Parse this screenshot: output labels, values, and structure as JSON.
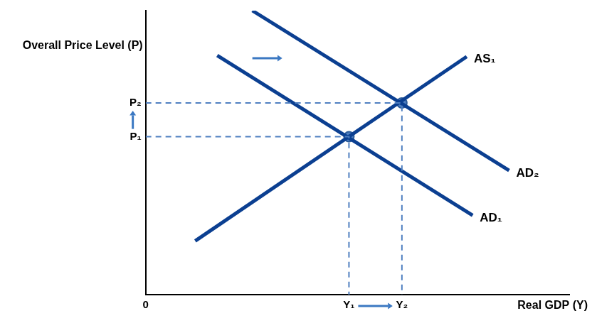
{
  "chart_data": {
    "type": "line",
    "x_label": "Real GDP (Y)",
    "y_label": "Overall Price Level (P)",
    "series": [
      {
        "name": "AS₁",
        "color": "#0b3f91",
        "x": [
          11.7,
          75.8
        ],
        "y": [
          18.9,
          83.8
        ]
      },
      {
        "name": "AD₁",
        "color": "#0b3f91",
        "x": [
          16.9,
          77.2
        ],
        "y": [
          84.2,
          27.9
        ]
      },
      {
        "name": "AD₂",
        "color": "#0b3f91",
        "x": [
          25.2,
          85.8
        ],
        "y": [
          100,
          43.7
        ]
      }
    ],
    "equilibria": {
      "color": "#4f7fc0",
      "marker": "circle",
      "line_style": "dashed",
      "x": [
        48,
        60.5
      ],
      "y": [
        55.6,
        67.5
      ]
    },
    "xlim": [
      0,
      100
    ],
    "ylim": [
      0,
      100
    ],
    "xticks": [
      {
        "value": 0,
        "label": "0"
      },
      {
        "value": 48,
        "label": "Y₁"
      },
      {
        "value": 60.5,
        "label": "Y₂"
      }
    ],
    "yticks": [
      {
        "value": 55.6,
        "label": "P₁"
      },
      {
        "value": 67.5,
        "label": "P₂"
      }
    ],
    "grid": false
  }
}
